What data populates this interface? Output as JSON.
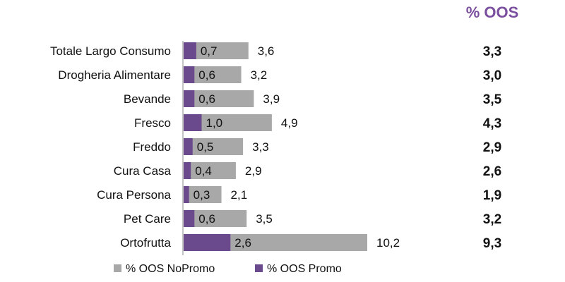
{
  "header": {
    "oos_title": "% OOS"
  },
  "colors": {
    "promo": "#6a4a8c",
    "nopromo": "#a8a8a8",
    "header": "#7b4fa0",
    "axis": "#8a8a8a"
  },
  "chart_data": {
    "type": "bar",
    "orientation": "horizontal",
    "stacked": "overlap",
    "categories": [
      "Totale Largo Consumo",
      "Drogheria Alimentare",
      "Bevande",
      "Fresco",
      "Freddo",
      "Cura Casa",
      "Cura Persona",
      "Pet Care",
      "Ortofrutta"
    ],
    "series": [
      {
        "name": "% OOS NoPromo",
        "values": [
          "3,6",
          "3,2",
          "3,9",
          "4,9",
          "3,3",
          "2,9",
          "2,1",
          "3,5",
          "10,2"
        ]
      },
      {
        "name": "% OOS Promo",
        "values": [
          "0,7",
          "0,6",
          "0,6",
          "1,0",
          "0,5",
          "0,4",
          "0,3",
          "0,6",
          "2,6"
        ]
      }
    ],
    "oos_totals": [
      "3,3",
      "3,0",
      "3,5",
      "4,3",
      "2,9",
      "2,6",
      "1,9",
      "3,2",
      "9,3"
    ],
    "xlim": [
      0,
      10.2
    ],
    "legend_position": "bottom"
  }
}
